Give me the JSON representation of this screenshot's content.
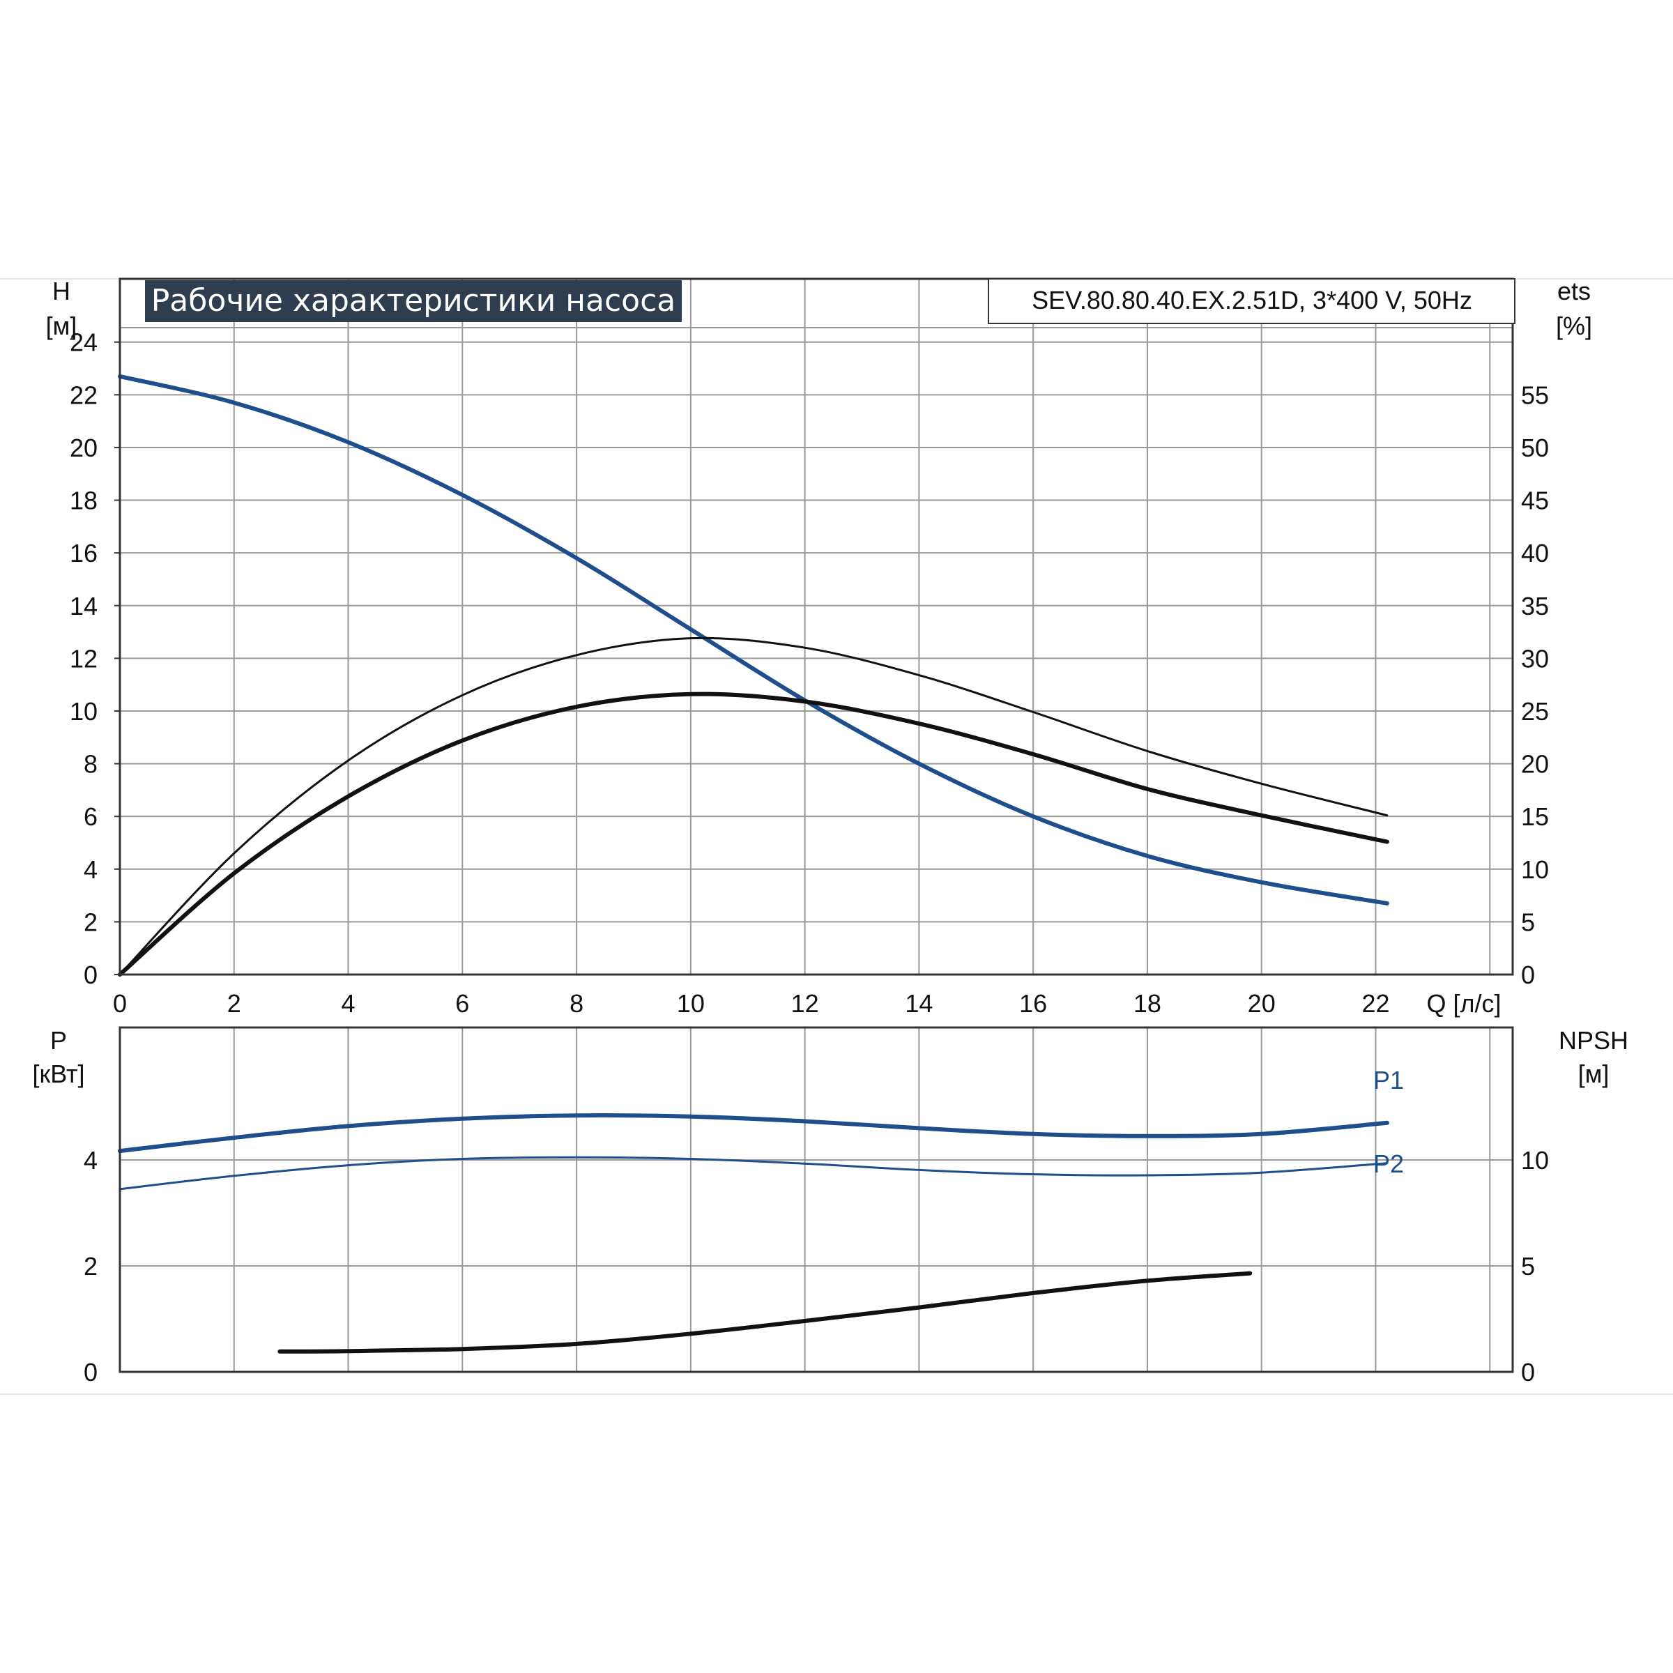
{
  "title": "Рабочие характеристики насоса",
  "model": "SEV.80.80.40.EX.2.51D, 3*400 V, 50Hz",
  "colors": {
    "blue": "#1f4e8c",
    "black": "#111111",
    "grid": "#9a9a9a",
    "frame": "#333333",
    "title_bg": "#2e3e50"
  },
  "chart_data": [
    {
      "type": "line",
      "xlabel": "Q [л/с]",
      "ylabel_left": [
        "H",
        "[м]"
      ],
      "ylabel_right": [
        "ets",
        "[%]"
      ],
      "xlim": [
        0,
        24.4
      ],
      "ylim": [
        0,
        26.4
      ],
      "y2lim": [
        0,
        66
      ],
      "x_ticks": [
        "0",
        "2",
        "4",
        "6",
        "8",
        "10",
        "12",
        "14",
        "16",
        "18",
        "20",
        "22"
      ],
      "y_ticks": [
        "0",
        "2",
        "4",
        "6",
        "8",
        "10",
        "12",
        "14",
        "16",
        "18",
        "20",
        "22",
        "24"
      ],
      "y2_ticks": [
        "0",
        "5",
        "10",
        "15",
        "20",
        "25",
        "30",
        "35",
        "40",
        "45",
        "50",
        "55"
      ],
      "grid": true,
      "series": [
        {
          "axis": "left",
          "color": "blue",
          "weight": "bold",
          "x": [
            0,
            2,
            4,
            6,
            8,
            10,
            12,
            14,
            16,
            18,
            20,
            22.2
          ],
          "y": [
            22.7,
            21.7,
            20.2,
            18.2,
            15.8,
            13.1,
            10.4,
            8.0,
            6.0,
            4.5,
            3.5,
            2.7
          ]
        },
        {
          "axis": "right",
          "color": "black",
          "weight": "thin",
          "x": [
            0,
            2,
            4,
            6,
            8,
            10,
            12,
            14,
            16,
            18,
            20,
            22.2
          ],
          "y": [
            0,
            11.5,
            20.3,
            26.5,
            30.3,
            31.9,
            31.0,
            28.4,
            24.9,
            21.2,
            18.1,
            15.1
          ]
        },
        {
          "axis": "right",
          "color": "black",
          "weight": "bold",
          "x": [
            0,
            2,
            4,
            6,
            8,
            10,
            12,
            14,
            16,
            18,
            20,
            22.2
          ],
          "y": [
            0,
            9.6,
            16.9,
            22.2,
            25.4,
            26.6,
            25.9,
            23.8,
            20.9,
            17.6,
            15.1,
            12.6
          ]
        }
      ]
    },
    {
      "type": "line",
      "ylabel_left": [
        "P",
        "[кВт]"
      ],
      "ylabel_right": [
        "NPSH",
        "[м]"
      ],
      "xlim": [
        0,
        24.4
      ],
      "ylim": [
        0,
        6.5
      ],
      "y2lim": [
        0,
        16.25
      ],
      "y_ticks": [
        "0",
        "2",
        "4"
      ],
      "y2_ticks": [
        "0",
        "5",
        "10"
      ],
      "grid": true,
      "series": [
        {
          "name": "P1",
          "axis": "left",
          "color": "blue",
          "weight": "bold",
          "x": [
            0,
            2,
            4,
            6,
            8,
            10,
            12,
            14,
            16,
            18,
            20,
            22.2
          ],
          "y": [
            4.17,
            4.42,
            4.64,
            4.78,
            4.84,
            4.82,
            4.73,
            4.6,
            4.49,
            4.45,
            4.49,
            4.7
          ]
        },
        {
          "name": "P2",
          "axis": "left",
          "color": "blue",
          "weight": "thin",
          "x": [
            0,
            2,
            4,
            6,
            8,
            10,
            12,
            14,
            16,
            18,
            20,
            22.2
          ],
          "y": [
            3.45,
            3.7,
            3.9,
            4.02,
            4.05,
            4.02,
            3.93,
            3.81,
            3.73,
            3.71,
            3.76,
            3.94
          ]
        },
        {
          "axis": "right",
          "color": "black",
          "weight": "bold",
          "x": [
            2.8,
            4,
            6,
            8,
            10,
            12,
            14,
            16,
            18,
            19.8
          ],
          "y": [
            0.96,
            0.98,
            1.08,
            1.32,
            1.8,
            2.4,
            3.04,
            3.72,
            4.3,
            4.65
          ]
        }
      ]
    }
  ]
}
